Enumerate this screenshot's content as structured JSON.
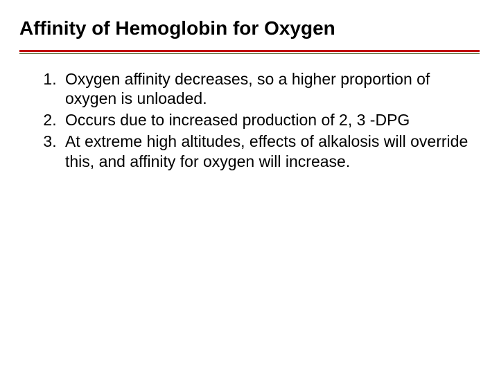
{
  "title": "Affinity of Hemoglobin for Oxygen",
  "colors": {
    "rule_red": "#c00000",
    "rule_green": "#4f6228"
  },
  "title_fontsize": 28,
  "body_fontsize": 23,
  "items": [
    "Oxygen affinity decreases, so a higher proportion of oxygen is unloaded.",
    "Occurs due to increased production of 2, 3 -DPG",
    "At extreme high altitudes, effects of alkalosis will override this, and affinity for oxygen will increase."
  ]
}
